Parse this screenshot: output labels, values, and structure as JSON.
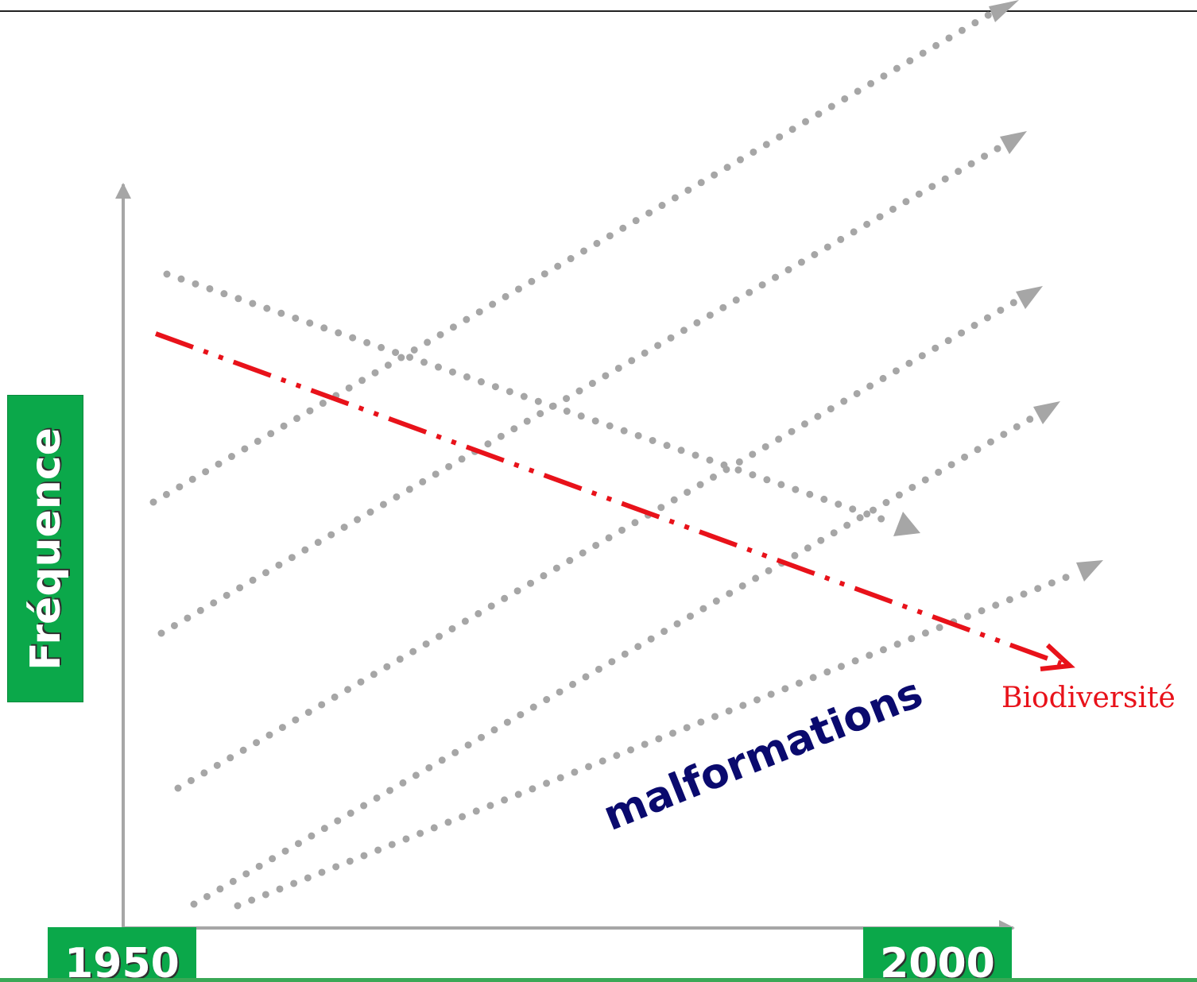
{
  "labels": {
    "y_axis": "Fréquence",
    "year_start": "1950",
    "year_end": "2000",
    "malformations": "malformations",
    "biodiversity": "Biodiversité"
  },
  "colors": {
    "axis": "#a6a6a6",
    "dotted_trend": "#a6a6a6",
    "biodiversity": "#e8121a",
    "label_box": "#0ba84a",
    "malformations_text": "#0a0a6e"
  }
}
